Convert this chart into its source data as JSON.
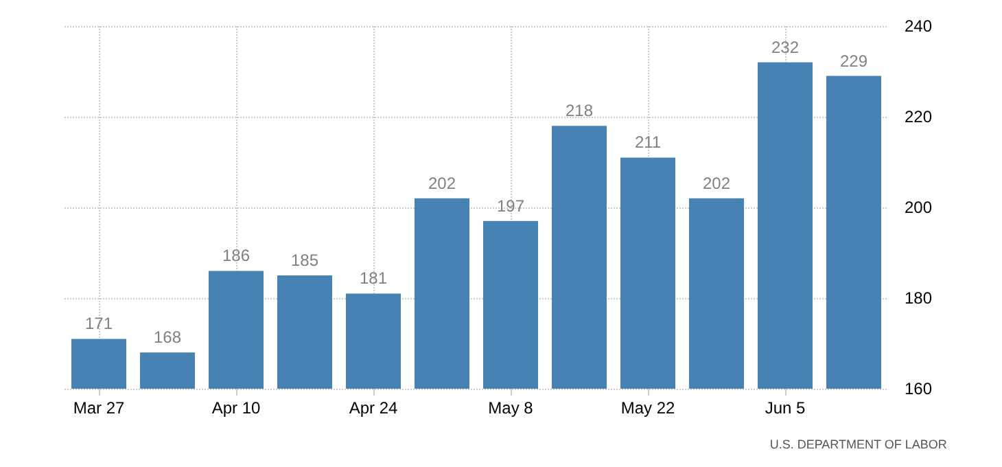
{
  "chart_data": {
    "type": "bar",
    "categories": [
      "Mar 27",
      null,
      "Apr 10",
      null,
      "Apr 24",
      null,
      "May 8",
      null,
      "May 22",
      null,
      "Jun 5",
      null
    ],
    "values": [
      171,
      168,
      186,
      185,
      181,
      202,
      197,
      218,
      211,
      202,
      232,
      229
    ],
    "color": "#4682b4",
    "data_labels": true,
    "ylim": [
      160,
      240
    ],
    "yticks": [
      160,
      180,
      200,
      220,
      240
    ],
    "grid": true,
    "annotations": [
      "U.S. DEPARTMENT OF LABOR"
    ]
  }
}
